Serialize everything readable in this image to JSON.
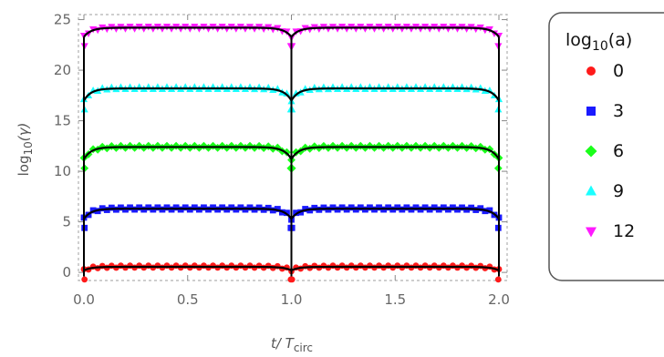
{
  "chart_data": {
    "type": "scatter",
    "xlabel": {
      "main": "t/ T",
      "sub": "circ"
    },
    "ylabel": {
      "main": "log",
      "sub": "10",
      "tail": "(γ)"
    },
    "xlim": [
      0.0,
      2.0
    ],
    "ylim": [
      -0.8,
      25.5
    ],
    "x_ticks": [
      "0.0",
      "0.5",
      "1.0",
      "1.5",
      "2.0"
    ],
    "y_ticks": [
      "0",
      "5",
      "10",
      "15",
      "20",
      "25"
    ],
    "x_tick_values": [
      0.0,
      0.5,
      1.0,
      1.5,
      2.0
    ],
    "y_tick_values": [
      0,
      5,
      10,
      15,
      20,
      25
    ],
    "legend": {
      "title": {
        "main": "log",
        "sub": "10",
        "tail": "(a)"
      },
      "placement": "right"
    },
    "series": [
      {
        "name": "0",
        "marker": "circle",
        "color": "#ff1a1a",
        "plateau": 0.55,
        "dip": 0.2
      },
      {
        "name": "3",
        "marker": "square",
        "color": "#1a1aff",
        "plateau": 6.3,
        "dip": 5.3
      },
      {
        "name": "6",
        "marker": "diamond",
        "color": "#1aff1a",
        "plateau": 12.4,
        "dip": 11.2
      },
      {
        "name": "9",
        "marker": "triangle-up",
        "color": "#1affff",
        "plateau": 18.2,
        "dip": 17.0
      },
      {
        "name": "12",
        "marker": "triangle-down",
        "color": "#ff1aff",
        "plateau": 24.2,
        "dip": 23.3
      }
    ],
    "fit_line_color": "#000000",
    "frame": "dashed",
    "grid": false
  }
}
